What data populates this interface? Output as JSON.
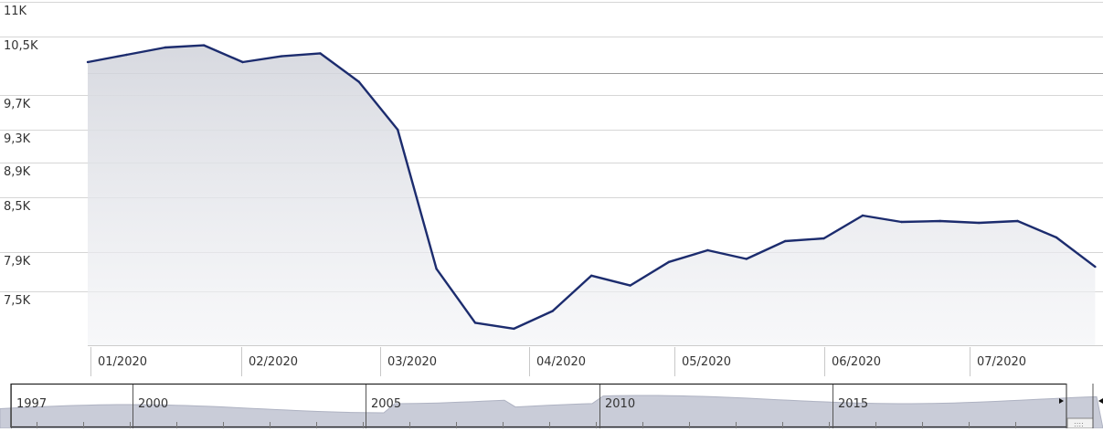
{
  "chart_data": {
    "type": "area",
    "title": "",
    "xlabel": "",
    "ylabel": "",
    "y_ticks": [
      "11K",
      "10,5K",
      "9,7K",
      "9,3K",
      "8,9K",
      "8,5K",
      "7,9K",
      "7,5K"
    ],
    "y_tick_values": [
      11000,
      10500,
      9700,
      9300,
      8900,
      8500,
      7900,
      7500
    ],
    "x_ticks": [
      "01/2020",
      "02/2020",
      "03/2020",
      "04/2020",
      "05/2020",
      "06/2020",
      "07/2020"
    ],
    "x_tick_positions": [
      0,
      4,
      8,
      12,
      16,
      20,
      24
    ],
    "series": [
      {
        "values": [
          10150,
          10250,
          10350,
          10380,
          10150,
          10230,
          10270,
          9880,
          9300,
          7730,
          7180,
          7120,
          7300,
          7660,
          7560,
          7800,
          7920,
          7830,
          8020,
          8050,
          8300,
          8230,
          8240,
          8220,
          8240,
          8060,
          7750
        ]
      }
    ],
    "grid": true,
    "colors": {
      "line": "#1c2c6e",
      "fill": "#d5d7de",
      "grid": "#d6d6d6"
    }
  },
  "navigator": {
    "year_labels": [
      "1997",
      "2000",
      "2005",
      "2010",
      "2015"
    ],
    "scroll_right_icon": "arrow-right-icon",
    "scroll_left_icon": "arrow-left-icon",
    "handle_icon": "grip-icon"
  }
}
